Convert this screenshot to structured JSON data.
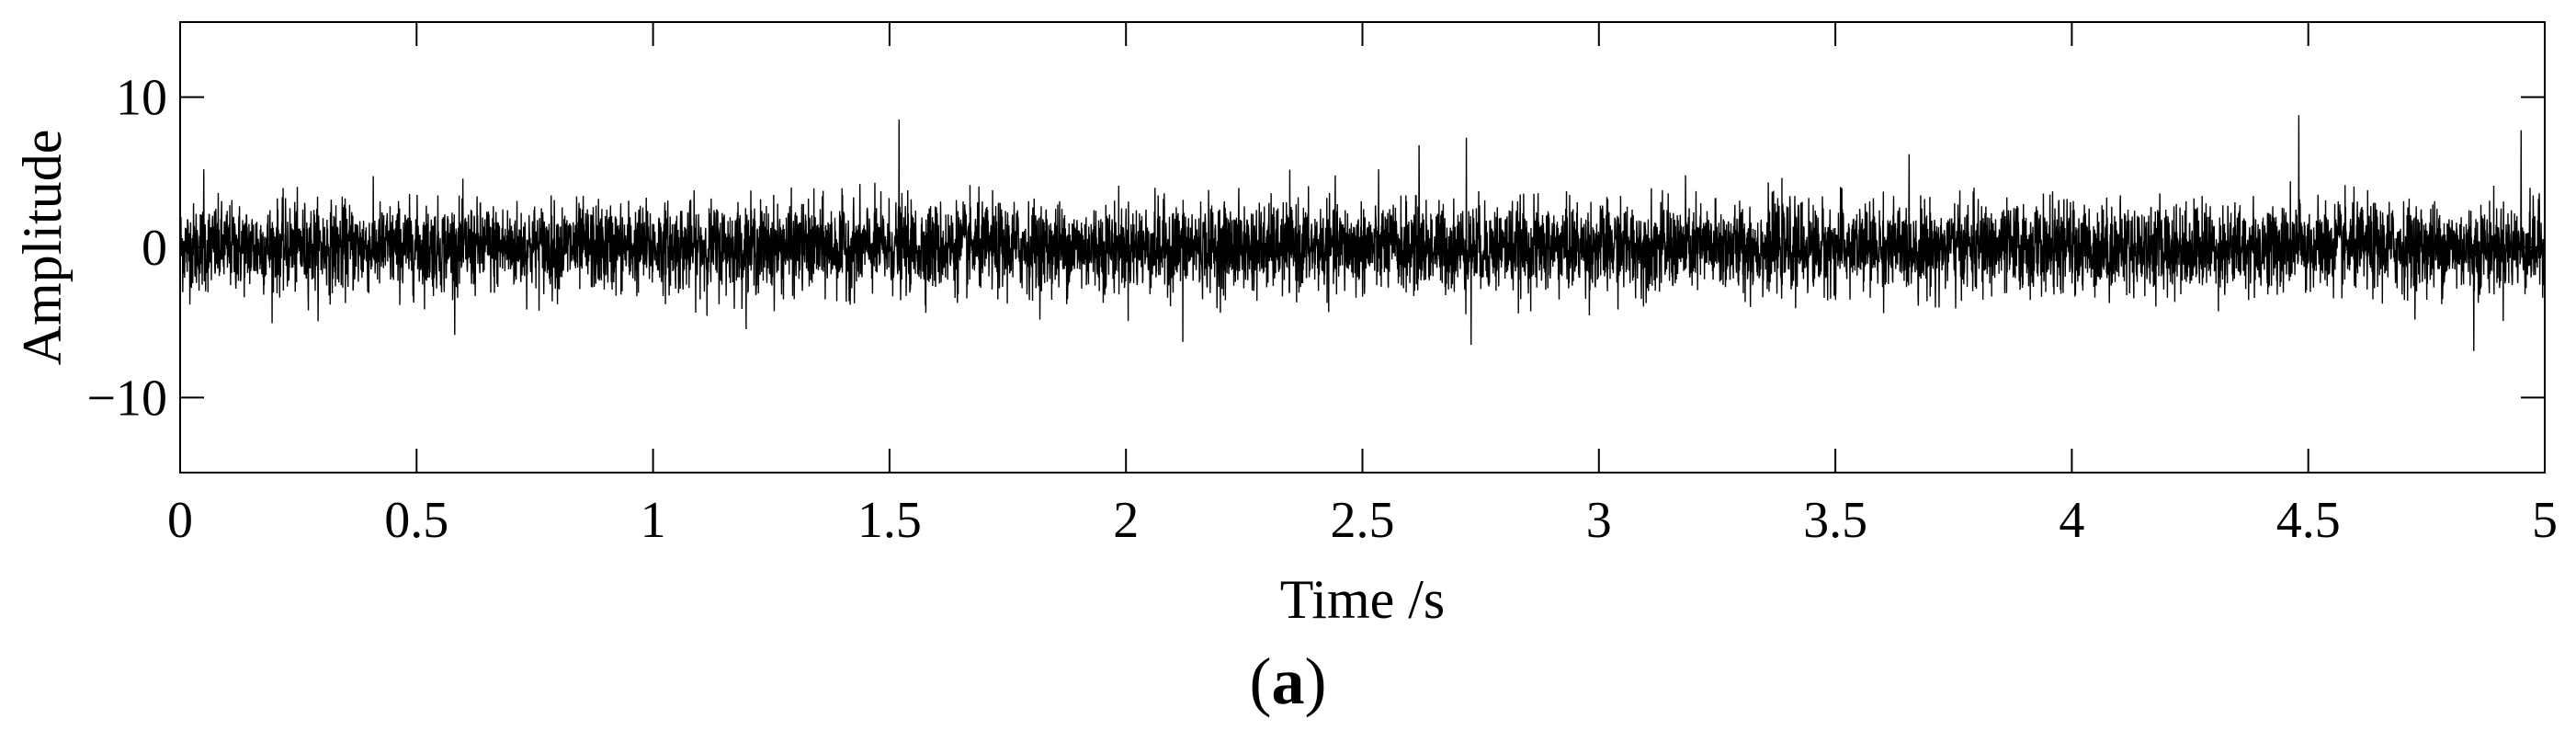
{
  "chart_data": {
    "type": "line",
    "xlabel": "Time /s",
    "ylabel": "Amplitude",
    "xlim": [
      0,
      5
    ],
    "ylim": [
      -15,
      15
    ],
    "xticks": [
      0,
      0.5,
      1,
      1.5,
      2,
      2.5,
      3,
      3.5,
      4,
      4.5,
      5
    ],
    "xtick_labels": [
      "0",
      "0.5",
      "1",
      "1.5",
      "2",
      "2.5",
      "3",
      "3.5",
      "4",
      "4.5",
      "5"
    ],
    "yticks": [
      -10,
      0,
      10
    ],
    "ytick_labels": [
      "−10",
      "0",
      "10"
    ],
    "grid": false,
    "line_color": "#000000",
    "signal": {
      "description_value_range": [
        -7,
        9
      ],
      "peaks": [
        {
          "x": 0.05,
          "y": 5.2
        },
        {
          "x": 1.52,
          "y": 8.5
        },
        {
          "x": 2.62,
          "y": 6.8
        },
        {
          "x": 2.72,
          "y": 7.3
        },
        {
          "x": 2.73,
          "y": -6.5
        },
        {
          "x": 2.12,
          "y": -6.3
        },
        {
          "x": 4.48,
          "y": 8.8
        },
        {
          "x": 4.85,
          "y": -6.9
        },
        {
          "x": 4.95,
          "y": 7.8
        }
      ]
    }
  },
  "panel_label": {
    "open": "(",
    "letter": "a",
    "close": ")"
  }
}
